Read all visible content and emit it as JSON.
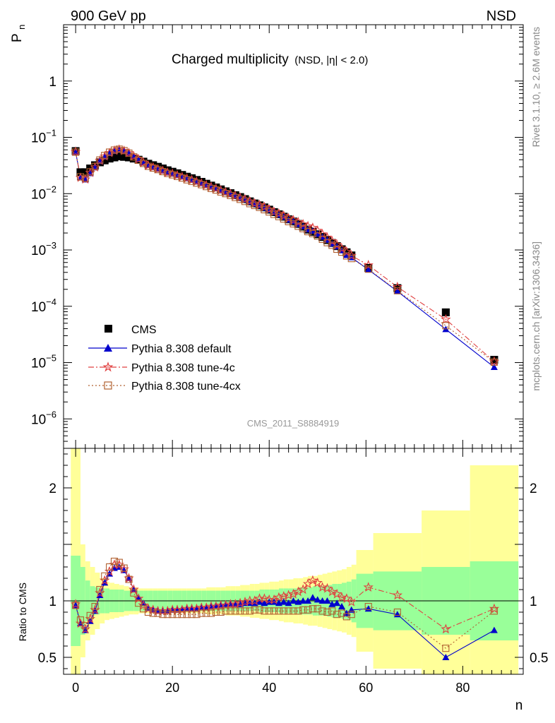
{
  "header": {
    "left": "900 GeV pp",
    "right": "NSD"
  },
  "side": {
    "top": "Rivet 3.1.10, ≥ 2.6M events",
    "bottom": "mcplots.cern.ch [arXiv:1306.3436]"
  },
  "watermark": "CMS_2011_S8884919",
  "labels": {
    "ylabel_main_p": "P",
    "ylabel_main_sub": "n",
    "ylabel_ratio": "Ratio to CMS",
    "xlabel": "n",
    "title_main": "Charged multiplicity",
    "title_sub": "(NSD, |η| < 2.0)"
  },
  "colors": {
    "cms": "#000000",
    "default": "#0000cc",
    "tune4c": "#e04040",
    "tune4cx": "#b06030",
    "band_stat": "#99ff99",
    "band_syst": "#ffff99"
  },
  "legend": [
    {
      "key": "cms",
      "label": "CMS"
    },
    {
      "key": "default",
      "label": "Pythia 8.308 default"
    },
    {
      "key": "tune4c",
      "label": "Pythia 8.308 tune-4c"
    },
    {
      "key": "tune4cx",
      "label": "Pythia 8.308 tune-4cx"
    }
  ],
  "chart_data": {
    "type": "scatter",
    "main": {
      "xlim": [
        -2.5,
        92.5
      ],
      "ylim": [
        3e-07,
        10
      ],
      "yscale": "log",
      "yticks": [
        "10^-6",
        "10^-5",
        "10^-4",
        "10^-3",
        "10^-2",
        "10^-1",
        "1"
      ]
    },
    "ratio": {
      "xlim": [
        -2.5,
        92.5
      ],
      "ylim": [
        0.35,
        2.35
      ],
      "yticks": [
        "0.5",
        "1",
        "2"
      ],
      "ytick_values": [
        0.5,
        1,
        2
      ]
    },
    "xticks": [
      0,
      20,
      40,
      60,
      80
    ],
    "x": [
      0,
      1,
      2,
      3,
      4,
      5,
      6,
      7,
      8,
      9,
      10,
      11,
      12,
      13,
      14,
      15,
      16,
      17,
      18,
      19,
      20,
      21,
      22,
      23,
      24,
      25,
      26,
      27,
      28,
      29,
      30,
      31,
      32,
      33,
      34,
      35,
      36,
      37,
      38,
      39,
      40,
      41,
      42,
      43,
      44,
      45,
      46,
      47,
      48,
      49,
      50,
      51,
      52,
      53,
      54,
      55,
      56,
      57,
      60.5,
      66.5,
      76.5,
      86.5
    ],
    "cms": [
      0.057,
      0.024,
      0.024,
      0.028,
      0.032,
      0.036,
      0.039,
      0.042,
      0.044,
      0.046,
      0.045,
      0.044,
      0.042,
      0.04,
      0.037,
      0.034,
      0.032,
      0.03,
      0.028,
      0.026,
      0.0245,
      0.023,
      0.0215,
      0.02,
      0.0188,
      0.0175,
      0.0162,
      0.015,
      0.0139,
      0.0129,
      0.0119,
      0.011,
      0.0102,
      0.0094,
      0.0087,
      0.008,
      0.0073,
      0.0067,
      0.0062,
      0.0057,
      0.0052,
      0.0047,
      0.0043,
      0.0039,
      0.0035,
      0.0032,
      0.0029,
      0.0026,
      0.0023,
      0.0021,
      0.0019,
      0.0017,
      0.0015,
      0.00133,
      0.00117,
      0.00103,
      0.00091,
      0.0008,
      0.00048,
      0.00021,
      7.8e-05,
      1.12e-05
    ],
    "ratio_default": [
      0.96,
      0.8,
      0.74,
      0.82,
      0.91,
      1.05,
      1.16,
      1.24,
      1.29,
      1.3,
      1.27,
      1.2,
      1.1,
      1.03,
      0.98,
      0.94,
      0.92,
      0.91,
      0.91,
      0.91,
      0.92,
      0.92,
      0.93,
      0.93,
      0.93,
      0.93,
      0.94,
      0.94,
      0.95,
      0.96,
      0.96,
      0.97,
      0.97,
      0.97,
      0.97,
      0.98,
      0.98,
      0.98,
      0.99,
      0.98,
      0.99,
      0.99,
      0.98,
      0.99,
      0.98,
      1.0,
      0.99,
      1.0,
      1.0,
      1.03,
      1.01,
      1.0,
      1.0,
      0.97,
      0.98,
      0.95,
      0.89,
      0.92,
      0.93,
      0.88,
      0.5,
      0.74
    ],
    "ratio_tune4c": [
      0.97,
      0.8,
      0.75,
      0.84,
      0.92,
      1.07,
      1.18,
      1.26,
      1.32,
      1.32,
      1.28,
      1.2,
      1.1,
      1.02,
      0.96,
      0.93,
      0.92,
      0.91,
      0.91,
      0.91,
      0.92,
      0.92,
      0.92,
      0.93,
      0.93,
      0.93,
      0.94,
      0.94,
      0.95,
      0.95,
      0.96,
      0.96,
      0.97,
      0.97,
      0.98,
      0.99,
      1.0,
      1.0,
      1.02,
      1.02,
      1.01,
      1.01,
      1.03,
      1.04,
      1.05,
      1.06,
      1.08,
      1.1,
      1.15,
      1.18,
      1.16,
      1.12,
      1.11,
      1.08,
      1.06,
      1.03,
      1.02,
      0.99,
      1.12,
      1.05,
      0.75,
      0.93
    ],
    "ratio_tune4cx": [
      0.96,
      0.83,
      0.78,
      0.87,
      0.95,
      1.1,
      1.22,
      1.3,
      1.35,
      1.34,
      1.29,
      1.19,
      1.07,
      0.98,
      0.93,
      0.9,
      0.89,
      0.89,
      0.88,
      0.88,
      0.88,
      0.88,
      0.88,
      0.88,
      0.88,
      0.88,
      0.89,
      0.89,
      0.89,
      0.9,
      0.9,
      0.91,
      0.91,
      0.91,
      0.91,
      0.91,
      0.91,
      0.92,
      0.92,
      0.91,
      0.91,
      0.91,
      0.91,
      0.91,
      0.91,
      0.91,
      0.91,
      0.92,
      0.92,
      0.93,
      0.93,
      0.91,
      0.9,
      0.91,
      0.88,
      0.89,
      0.86,
      0.88,
      0.95,
      0.9,
      0.58,
      0.91
    ],
    "band_edges": [
      -1,
      1,
      2,
      3,
      4,
      5,
      6,
      7,
      8,
      9,
      10,
      11,
      12,
      13,
      14,
      15,
      16,
      17,
      18,
      19,
      20,
      21,
      22,
      23,
      24,
      25,
      26,
      27,
      28,
      29,
      30,
      31,
      32,
      33,
      34,
      35,
      36,
      37,
      38,
      39,
      40,
      41,
      42,
      43,
      44,
      45,
      46,
      47,
      48,
      49,
      50,
      51,
      52,
      53,
      54,
      55,
      56,
      57,
      58,
      61.5,
      71.5,
      81.5,
      91.5
    ],
    "band_stat": [
      0.4,
      0.3,
      0.18,
      0.13,
      0.12,
      0.11,
      0.11,
      0.1,
      0.1,
      0.1,
      0.09,
      0.09,
      0.09,
      0.09,
      0.09,
      0.09,
      0.09,
      0.09,
      0.09,
      0.09,
      0.09,
      0.09,
      0.09,
      0.09,
      0.09,
      0.09,
      0.09,
      0.09,
      0.09,
      0.09,
      0.09,
      0.09,
      0.09,
      0.09,
      0.09,
      0.09,
      0.09,
      0.09,
      0.1,
      0.1,
      0.1,
      0.1,
      0.11,
      0.11,
      0.11,
      0.11,
      0.12,
      0.12,
      0.12,
      0.13,
      0.13,
      0.13,
      0.14,
      0.15,
      0.15,
      0.16,
      0.17,
      0.19,
      0.24,
      0.26,
      0.3,
      0.35
    ],
    "band_syst": [
      1.5,
      0.5,
      0.35,
      0.3,
      0.25,
      0.2,
      0.17,
      0.16,
      0.15,
      0.14,
      0.13,
      0.12,
      0.12,
      0.11,
      0.11,
      0.11,
      0.11,
      0.11,
      0.11,
      0.11,
      0.11,
      0.11,
      0.11,
      0.11,
      0.11,
      0.11,
      0.11,
      0.12,
      0.12,
      0.12,
      0.12,
      0.13,
      0.13,
      0.13,
      0.14,
      0.14,
      0.15,
      0.15,
      0.16,
      0.16,
      0.17,
      0.17,
      0.18,
      0.19,
      0.19,
      0.2,
      0.2,
      0.21,
      0.22,
      0.22,
      0.23,
      0.24,
      0.25,
      0.26,
      0.27,
      0.28,
      0.3,
      0.32,
      0.45,
      0.6,
      0.8,
      1.2
    ]
  }
}
